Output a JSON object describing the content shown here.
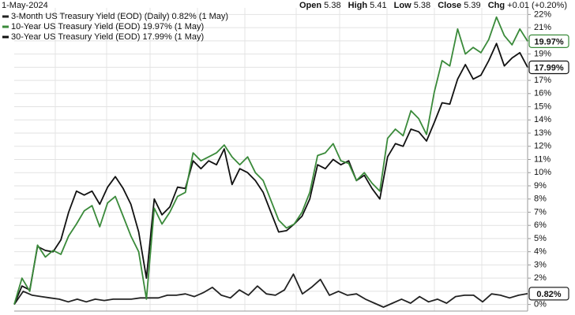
{
  "header": {
    "date": "1-May-2024",
    "open_label": "Open",
    "open": "5.38",
    "high_label": "High",
    "high": "5.41",
    "low_label": "Low",
    "low": "5.38",
    "close_label": "Close",
    "close": "5.39",
    "chg_label": "Chg",
    "chg": "+0.01 (+0.20%)"
  },
  "chart_data": {
    "type": "line",
    "ylim": [
      -0.5,
      22.5
    ],
    "yticks": [
      {
        "value": 0,
        "label": "0%"
      },
      {
        "value": 1,
        "label": "1%"
      },
      {
        "value": 2,
        "label": "2%"
      },
      {
        "value": 3,
        "label": "3%"
      },
      {
        "value": 4,
        "label": "4%"
      },
      {
        "value": 5,
        "label": "5%"
      },
      {
        "value": 6,
        "label": "6%"
      },
      {
        "value": 7,
        "label": "7%"
      },
      {
        "value": 8,
        "label": "8%"
      },
      {
        "value": 9,
        "label": "9%"
      },
      {
        "value": 10,
        "label": "10%"
      },
      {
        "value": 11,
        "label": "11%"
      },
      {
        "value": 12,
        "label": "12%"
      },
      {
        "value": 13,
        "label": "13%"
      },
      {
        "value": 14,
        "label": "14%"
      },
      {
        "value": 15,
        "label": "15%"
      },
      {
        "value": 16,
        "label": "16%"
      },
      {
        "value": 17,
        "label": "17%"
      },
      {
        "value": 18,
        "label": "18%"
      },
      {
        "value": 19,
        "label": "19%"
      },
      {
        "value": 20,
        "label": "20%"
      },
      {
        "value": 21,
        "label": "21%"
      },
      {
        "value": 22,
        "label": "22%"
      }
    ],
    "grid": true,
    "series": [
      {
        "name": "3-Month US Treasury Yield (EOD) (Daily) 0.82% (1 May)",
        "color": "#222222",
        "values": [
          0,
          1.0,
          0.7,
          0.6,
          0.5,
          0.4,
          0.2,
          0.4,
          0.2,
          0.4,
          0.3,
          0.4,
          0.4,
          0.4,
          0.5,
          0.5,
          0.5,
          0.7,
          0.7,
          0.8,
          0.6,
          0.9,
          1.3,
          0.7,
          0.5,
          1.1,
          0.7,
          1.4,
          0.8,
          0.7,
          1.1,
          2.3,
          0.8,
          1.3,
          1.9,
          0.7,
          1.0,
          0.7,
          0.8,
          0.4,
          0.1,
          -0.2,
          0.1,
          0.4,
          0.1,
          0.6,
          0.2,
          0.4,
          0.1,
          0.6,
          0.7,
          0.7,
          0.2,
          0.8,
          0.7,
          0.5,
          0.7,
          0.82
        ],
        "value_labels": [
          null,
          null,
          null,
          null,
          null,
          null,
          null,
          null,
          null,
          null,
          null,
          null,
          null,
          null,
          null,
          null,
          null,
          null,
          null,
          null,
          null,
          null,
          null,
          null,
          null,
          null,
          null,
          null,
          null,
          null,
          null,
          null,
          null,
          null,
          null,
          null,
          null,
          null,
          null,
          null,
          null,
          null,
          null,
          null,
          null,
          null,
          null,
          null,
          null,
          null,
          null,
          null,
          null,
          null,
          null,
          null,
          null,
          "0.82%"
        ]
      },
      {
        "name": "10-Year US Treasury Yield (EOD) 19.97% (1 May)",
        "color": "#3a8a3a",
        "values": [
          0,
          2.0,
          1.0,
          4.5,
          3.6,
          4.1,
          3.8,
          5.2,
          6.1,
          7.1,
          7.5,
          5.9,
          7.7,
          8.2,
          6.7,
          5.2,
          4.0,
          0.4,
          7.3,
          6.1,
          7.0,
          8.2,
          8.5,
          11.5,
          10.9,
          11.2,
          11.5,
          12.1,
          11.2,
          10.6,
          11.2,
          10.0,
          9.4,
          7.9,
          6.4,
          5.8,
          6.1,
          7.0,
          8.5,
          11.3,
          11.5,
          12.2,
          10.9,
          10.7,
          9.4,
          10.0,
          9.2,
          8.6,
          12.6,
          13.3,
          12.8,
          14.7,
          14.1,
          12.9,
          16.1,
          18.5,
          18.1,
          20.9,
          19.0,
          19.5,
          19.1,
          20.1,
          21.8,
          20.4,
          19.7,
          20.9,
          19.97
        ],
        "value_labels": [
          null,
          null,
          null,
          null,
          null,
          null,
          null,
          null,
          null,
          null,
          null,
          null,
          null,
          null,
          null,
          null,
          null,
          null,
          null,
          null,
          null,
          null,
          null,
          null,
          null,
          null,
          null,
          null,
          null,
          null,
          null,
          null,
          null,
          null,
          null,
          null,
          null,
          null,
          null,
          null,
          null,
          null,
          null,
          null,
          null,
          null,
          null,
          null,
          null,
          null,
          null,
          null,
          null,
          null,
          null,
          null,
          null,
          null,
          null,
          null,
          null,
          null,
          null,
          null,
          null,
          null,
          "19.97%"
        ]
      },
      {
        "name": "30-Year US Treasury Yield (EOD) 17.99% (1 May)",
        "color": "#111111",
        "values": [
          0,
          1.4,
          1.1,
          4.4,
          4.1,
          4.0,
          4.9,
          7.0,
          8.6,
          8.3,
          8.6,
          7.6,
          8.9,
          9.7,
          8.8,
          7.6,
          5.5,
          2.0,
          8.0,
          6.8,
          7.4,
          8.9,
          8.8,
          10.9,
          10.3,
          10.9,
          10.6,
          11.8,
          9.1,
          10.3,
          10.0,
          9.4,
          8.5,
          7.0,
          5.5,
          5.6,
          6.1,
          6.7,
          8.0,
          10.6,
          10.3,
          11.0,
          10.6,
          10.9,
          9.4,
          9.8,
          8.8,
          8.0,
          11.2,
          12.2,
          12.0,
          13.3,
          13.1,
          12.4,
          13.8,
          15.3,
          15.2,
          17.1,
          18.2,
          17.1,
          17.4,
          18.5,
          19.8,
          18.1,
          18.7,
          19.1,
          17.99
        ],
        "value_labels": [
          null,
          null,
          null,
          null,
          null,
          null,
          null,
          null,
          null,
          null,
          null,
          null,
          null,
          null,
          null,
          null,
          null,
          null,
          null,
          null,
          null,
          null,
          null,
          null,
          null,
          null,
          null,
          null,
          null,
          null,
          null,
          null,
          null,
          null,
          null,
          null,
          null,
          null,
          null,
          null,
          null,
          null,
          null,
          null,
          null,
          null,
          null,
          null,
          null,
          null,
          null,
          null,
          null,
          null,
          null,
          null,
          null,
          null,
          null,
          null,
          null,
          null,
          null,
          null,
          null,
          null,
          "17.99%"
        ]
      }
    ]
  }
}
